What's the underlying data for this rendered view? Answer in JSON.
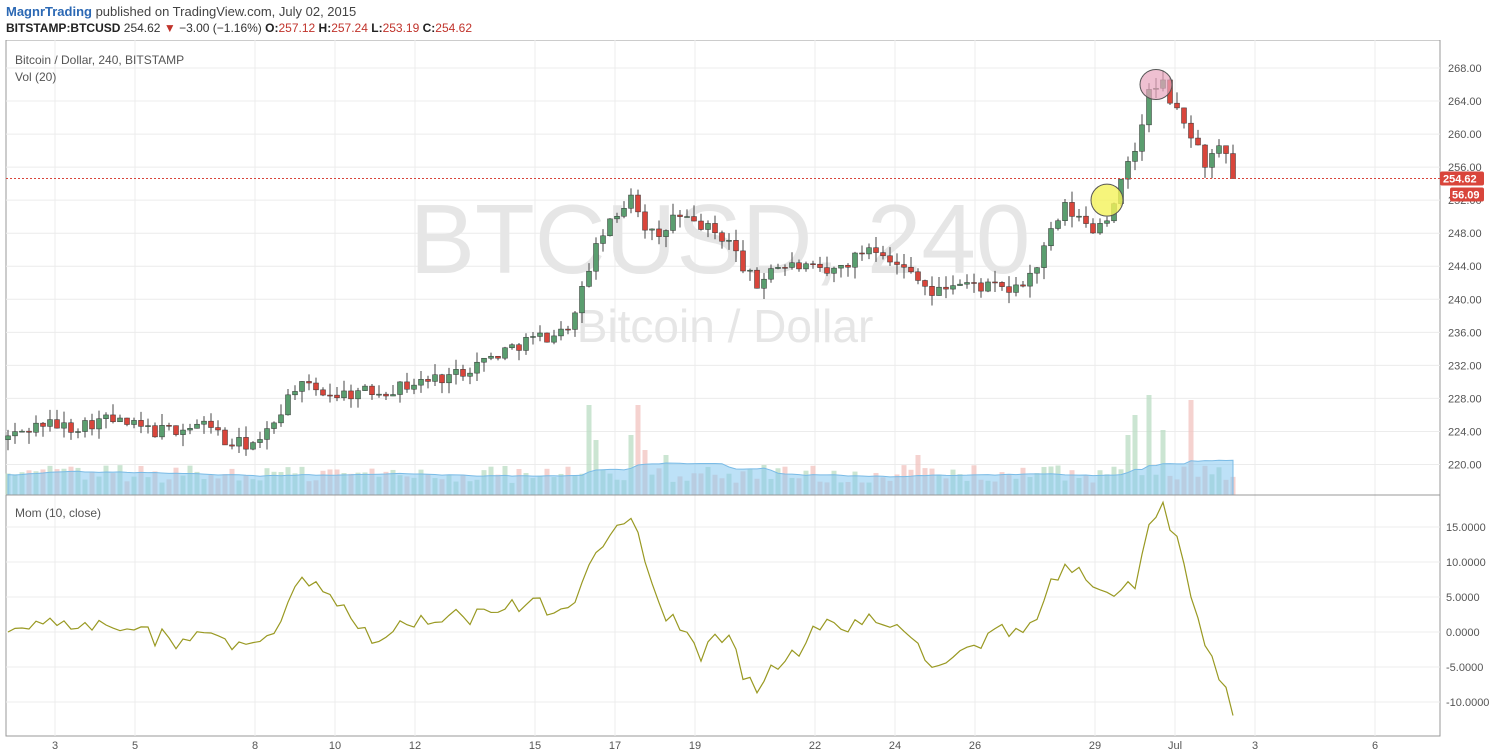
{
  "header": {
    "author": "MagnrTrading",
    "published": "published on TradingView.com, July 02, 2015",
    "symbol": "BITSTAMP:BTCUSD",
    "last": "254.62",
    "change_arrow": "▼",
    "change": "−3.00 (−1.16%)",
    "o_label": "O:",
    "o_value": "257.12",
    "h_label": "H:",
    "h_value": "257.24",
    "l_label": "L:",
    "l_value": "253.19",
    "c_label": "C:",
    "c_value": "254.62"
  },
  "chart_data": {
    "type": "candlestick",
    "title": "Bitcoin / Dollar, 240, BITSTAMP",
    "volume_label": "Vol (20)",
    "momentum_label": "Mom (10, close)",
    "watermark_symbol": "BTCUSD, 240",
    "watermark_name": "Bitcoin / Dollar",
    "price_ylim": [
      216,
      270
    ],
    "price_ticks": [
      "268.00",
      "264.00",
      "260.00",
      "256.00",
      "252.00",
      "248.00",
      "244.00",
      "240.00",
      "236.00",
      "232.00",
      "228.00",
      "224.00",
      "220.00"
    ],
    "last_price_label": "254.62",
    "volume_ma_label": "56.09",
    "momentum_ylim": [
      -13,
      19
    ],
    "momentum_ticks": [
      "15.0000",
      "10.0000",
      "5.0000",
      "0.0000",
      "-5.0000",
      "-10.0000"
    ],
    "x_ticks": [
      "3",
      "5",
      "8",
      "10",
      "12",
      "15",
      "17",
      "19",
      "22",
      "24",
      "26",
      "29",
      "Jul",
      "3",
      "6"
    ],
    "colors": {
      "up": "#5a9e6f",
      "down": "#d9453b",
      "wick": "#444444",
      "momentum": "#999922",
      "volume_ma": "#86c8f0",
      "last_price": "#d9453b"
    },
    "annotations": [
      {
        "type": "circle",
        "color": "#f4f25a",
        "near_price": 252
      },
      {
        "type": "circle",
        "color": "#e8a5bd",
        "near_price": 266
      }
    ],
    "waypoints": [
      [
        0,
        223
      ],
      [
        6,
        225
      ],
      [
        10,
        224.5
      ],
      [
        15,
        225.5
      ],
      [
        22,
        224
      ],
      [
        27,
        224.5
      ],
      [
        30,
        225
      ],
      [
        32,
        222.5
      ],
      [
        37,
        222.5
      ],
      [
        42,
        229.5
      ],
      [
        48,
        228.5
      ],
      [
        55,
        229
      ],
      [
        60,
        230
      ],
      [
        65,
        231
      ],
      [
        70,
        233
      ],
      [
        75,
        235
      ],
      [
        80,
        236
      ],
      [
        82,
        238
      ],
      [
        84,
        244
      ],
      [
        86,
        248
      ],
      [
        88,
        250
      ],
      [
        90,
        253
      ],
      [
        92,
        249
      ],
      [
        94,
        247
      ],
      [
        96,
        250
      ],
      [
        100,
        249
      ],
      [
        104,
        247
      ],
      [
        106,
        244
      ],
      [
        108,
        241.5
      ],
      [
        110,
        244
      ],
      [
        114,
        244
      ],
      [
        118,
        243
      ],
      [
        122,
        245
      ],
      [
        124,
        246.5
      ],
      [
        126,
        246
      ],
      [
        128,
        244
      ],
      [
        131,
        243
      ],
      [
        133,
        240.5
      ],
      [
        136,
        242
      ],
      [
        141,
        241.5
      ],
      [
        145,
        241
      ],
      [
        148,
        244
      ],
      [
        150,
        248
      ],
      [
        152,
        251
      ],
      [
        156,
        248.5
      ],
      [
        158,
        250
      ],
      [
        160,
        254
      ],
      [
        162,
        258
      ],
      [
        164,
        265
      ],
      [
        166,
        266
      ],
      [
        168,
        262.5
      ],
      [
        170,
        260
      ],
      [
        172,
        256.5
      ],
      [
        174,
        258
      ],
      [
        176,
        256
      ],
      [
        178,
        255
      ]
    ],
    "n_candles": 176,
    "spikes": [
      [
        83,
        0.9
      ],
      [
        84,
        0.55
      ],
      [
        89,
        0.6
      ],
      [
        90,
        0.9
      ],
      [
        91,
        0.45
      ],
      [
        94,
        0.4
      ],
      [
        108,
        0.3
      ],
      [
        130,
        0.4
      ],
      [
        160,
        0.6
      ],
      [
        161,
        0.8
      ],
      [
        163,
        1.0
      ],
      [
        165,
        0.65
      ],
      [
        169,
        0.95
      ],
      [
        176,
        0.35
      ]
    ],
    "mom_range": [
      -11.5,
      18.2
    ]
  }
}
